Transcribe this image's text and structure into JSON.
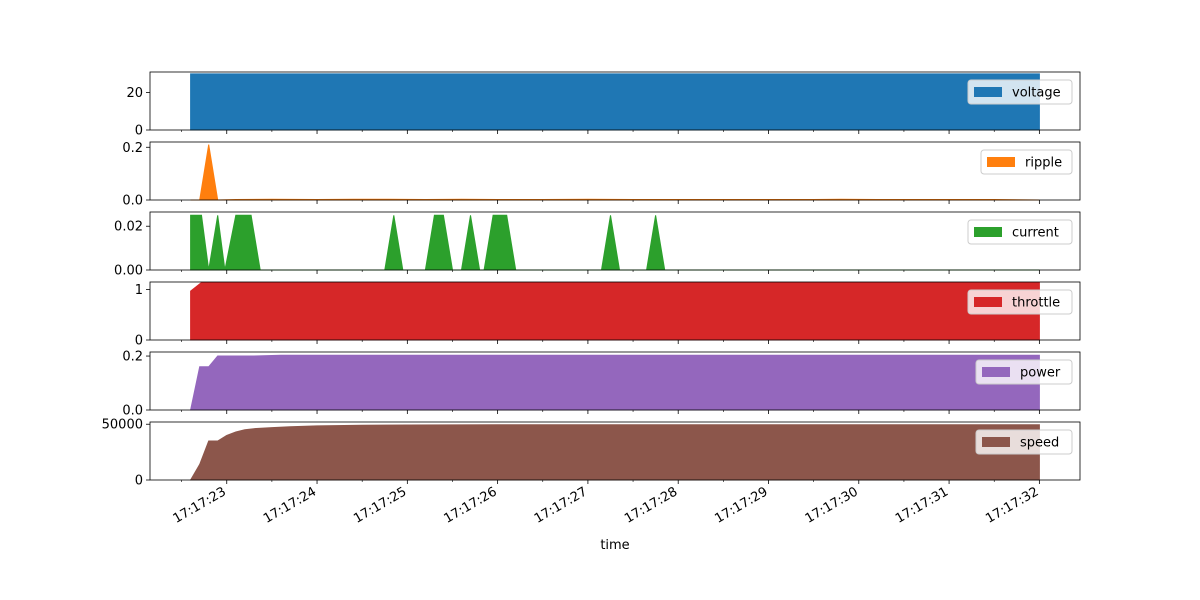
{
  "chart_data": {
    "type": "area",
    "xlabel": "time",
    "x_ticks": [
      "17:17:23",
      "17:17:24",
      "17:17:25",
      "17:17:26",
      "17:17:27",
      "17:17:28",
      "17:17:29",
      "17:17:30",
      "17:17:31",
      "17:17:32"
    ],
    "x_range_seconds": [
      22.15,
      32.45
    ],
    "panels": [
      {
        "name": "voltage",
        "color": "#1f77b4",
        "ylim": [
          0,
          31
        ],
        "yticks": [
          {
            "v": 0,
            "label": "0"
          },
          {
            "v": 20,
            "label": "20"
          }
        ],
        "points": [
          [
            22.6,
            0
          ],
          [
            22.6,
            30
          ],
          [
            32.0,
            30
          ],
          [
            32.0,
            0
          ]
        ]
      },
      {
        "name": "ripple",
        "color": "#ff7f0e",
        "ylim": [
          0,
          0.22
        ],
        "yticks": [
          {
            "v": 0,
            "label": "0.0"
          },
          {
            "v": 0.2,
            "label": "0.2"
          }
        ],
        "points": [
          [
            22.6,
            0
          ],
          [
            22.7,
            0
          ],
          [
            22.8,
            0.21
          ],
          [
            22.9,
            0
          ],
          [
            23.1,
            0.002
          ],
          [
            23.5,
            0.003
          ],
          [
            24.0,
            0.002
          ],
          [
            24.4,
            0.003
          ],
          [
            24.8,
            0.003
          ],
          [
            25.2,
            0.002
          ],
          [
            25.6,
            0.003
          ],
          [
            26.0,
            0.002
          ],
          [
            26.5,
            0.002
          ],
          [
            27.0,
            0.003
          ],
          [
            27.5,
            0.002
          ],
          [
            28.0,
            0.002
          ],
          [
            28.5,
            0.002
          ],
          [
            29.0,
            0.002
          ],
          [
            29.5,
            0.002
          ],
          [
            29.8,
            0.003
          ],
          [
            30.2,
            0.002
          ],
          [
            30.6,
            0.002
          ],
          [
            31.0,
            0.002
          ],
          [
            31.5,
            0.002
          ],
          [
            32.0,
            0
          ]
        ]
      },
      {
        "name": "current",
        "color": "#2ca02c",
        "ylim": [
          0,
          0.0265
        ],
        "yticks": [
          {
            "v": 0,
            "label": "0.00"
          },
          {
            "v": 0.02,
            "label": "0.02"
          }
        ],
        "points": [
          [
            22.6,
            0
          ],
          [
            22.6,
            0.025
          ],
          [
            22.72,
            0.025
          ],
          [
            22.8,
            0
          ],
          [
            22.9,
            0.025
          ],
          [
            22.98,
            0
          ],
          [
            23.1,
            0.025
          ],
          [
            23.27,
            0.025
          ],
          [
            23.37,
            0
          ],
          [
            24.75,
            0
          ],
          [
            24.85,
            0.025
          ],
          [
            24.95,
            0
          ],
          [
            25.2,
            0
          ],
          [
            25.3,
            0.025
          ],
          [
            25.4,
            0.025
          ],
          [
            25.5,
            0
          ],
          [
            25.6,
            0
          ],
          [
            25.7,
            0.025
          ],
          [
            25.8,
            0
          ],
          [
            25.85,
            0
          ],
          [
            25.95,
            0.025
          ],
          [
            26.1,
            0.025
          ],
          [
            26.2,
            0
          ],
          [
            27.15,
            0
          ],
          [
            27.25,
            0.025
          ],
          [
            27.35,
            0
          ],
          [
            27.65,
            0
          ],
          [
            27.75,
            0.025
          ],
          [
            27.85,
            0
          ],
          [
            32.0,
            0
          ]
        ]
      },
      {
        "name": "throttle",
        "color": "#d62728",
        "ylim": [
          0,
          1.15
        ],
        "yticks": [
          {
            "v": 0,
            "label": "0"
          },
          {
            "v": 1,
            "label": "1"
          }
        ],
        "points": [
          [
            22.6,
            0
          ],
          [
            22.6,
            0.97
          ],
          [
            22.72,
            1.14
          ],
          [
            32.0,
            1.14
          ],
          [
            32.0,
            0
          ]
        ]
      },
      {
        "name": "power",
        "color": "#9467bd",
        "ylim": [
          0,
          0.215
        ],
        "yticks": [
          {
            "v": 0,
            "label": "0.0"
          },
          {
            "v": 0.2,
            "label": "0.2"
          }
        ],
        "points": [
          [
            22.6,
            0
          ],
          [
            22.7,
            0.16
          ],
          [
            22.8,
            0.16
          ],
          [
            22.9,
            0.2
          ],
          [
            23.3,
            0.2
          ],
          [
            23.6,
            0.203
          ],
          [
            24.0,
            0.203
          ],
          [
            24.5,
            0.203
          ],
          [
            25.0,
            0.203
          ],
          [
            26.0,
            0.203
          ],
          [
            27.0,
            0.203
          ],
          [
            28.0,
            0.203
          ],
          [
            29.0,
            0.203
          ],
          [
            30.0,
            0.203
          ],
          [
            31.0,
            0.203
          ],
          [
            32.0,
            0.203
          ],
          [
            32.0,
            0
          ]
        ]
      },
      {
        "name": "speed",
        "color": "#8c564b",
        "ylim": [
          0,
          52000
        ],
        "yticks": [
          {
            "v": 0,
            "label": "0"
          },
          {
            "v": 50000,
            "label": "50000"
          }
        ],
        "points": [
          [
            22.6,
            0
          ],
          [
            22.7,
            14000
          ],
          [
            22.8,
            35000
          ],
          [
            22.9,
            35000
          ],
          [
            23.0,
            40000
          ],
          [
            23.1,
            43000
          ],
          [
            23.2,
            45000
          ],
          [
            23.3,
            46000
          ],
          [
            23.5,
            47000
          ],
          [
            23.7,
            47800
          ],
          [
            24.0,
            48500
          ],
          [
            24.5,
            49000
          ],
          [
            25.0,
            49300
          ],
          [
            26.0,
            49500
          ],
          [
            27.0,
            49600
          ],
          [
            28.0,
            49600
          ],
          [
            29.0,
            49600
          ],
          [
            30.0,
            49600
          ],
          [
            31.0,
            49600
          ],
          [
            32.0,
            49600
          ],
          [
            32.0,
            0
          ]
        ]
      }
    ]
  }
}
